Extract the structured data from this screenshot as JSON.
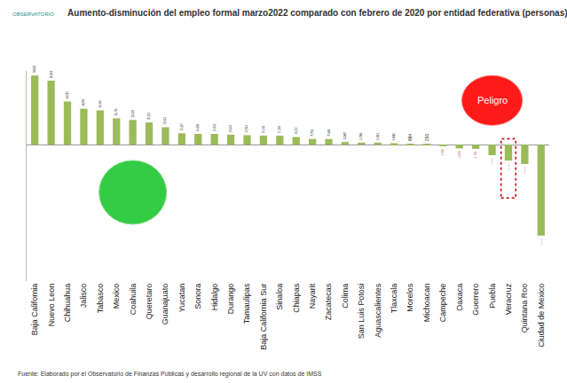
{
  "chart_data": {
    "type": "bar",
    "title": "Aumento-disminución del empleo formal marzo2022 comparado con febrero de 2020 por entidad federativa (personas)",
    "source": "Fuente: Elaborado por el Observatorio de Finanzas Públicas y desarrollo regional de la UV con datos de IMSS",
    "callout": "Peligro",
    "logo": "OBSERVATORIO",
    "categories": [
      "Baja California",
      "Nuevo Leon",
      "Chihuahua",
      "Jalisco",
      "Tabasco",
      "Mexico",
      "Coahuila",
      "Queretaro",
      "Guanajuato",
      "Yucatan",
      "Sonora",
      "Hidalgo",
      "Durango",
      "Tamaulipas",
      "Baja California Sur",
      "Sinaloa",
      "Chiapas",
      "Nayarit",
      "Zacatecas",
      "Colima",
      "San Luis Potosi",
      "Aguascalientes",
      "Tlaxcala",
      "Morelos",
      "Michoacan",
      "Campeche",
      "Oaxaca",
      "Guerrero",
      "Puebla",
      "Veracruz",
      "Quintana Roo",
      "Ciudad de Mexico"
    ],
    "values": [
      93833,
      86841,
      58581,
      48810,
      46536,
      35736,
      33509,
      30131,
      23604,
      15417,
      14584,
      14561,
      13462,
      12904,
      12311,
      12109,
      10262,
      7716,
      7646,
      3507,
      2742,
      2691,
      2042,
      664,
      251,
      -1693,
      -5099,
      -5708,
      -14305,
      -21595,
      -26218,
      -123516
    ],
    "value_labels": [
      "93,833",
      "86,841",
      "58,581",
      "48,810",
      "46,536",
      "35,736",
      "33,509",
      "30,131",
      "23,604",
      "15,417",
      "14,584",
      "14,561",
      "13,462",
      "12,904",
      "12,311",
      "12,109",
      "10,262",
      "7,716",
      "7,646",
      "3,507",
      "2,742",
      "2,691",
      "2,042",
      "664",
      "251",
      "-1,693",
      "-5,099",
      "-5,708",
      "-14,305",
      "-21,595",
      "-26,218",
      "-123,516"
    ],
    "color": "#9bbb59",
    "ylim": [
      -185000,
      100000
    ],
    "data_labels": true,
    "tick_labels": "x",
    "grid": false
  }
}
